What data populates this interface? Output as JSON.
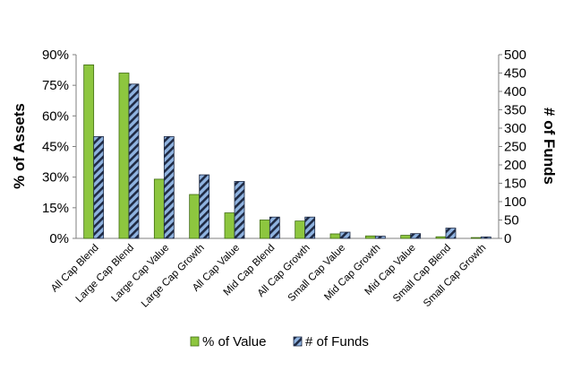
{
  "chart_data": {
    "type": "bar",
    "title": "",
    "categories": [
      "All Cap Blend",
      "Large Cap Blend",
      "Large Cap Value",
      "Large Cap Growth",
      "All Cap Value",
      "Mid Cap Blend",
      "All Cap Growth",
      "Small Cap Value",
      "Mid Cap Growth",
      "Mid Cap Value",
      "Small Cap Blend",
      "Small Cap Growth"
    ],
    "series": [
      {
        "name": "% of Value",
        "axis": "left",
        "values": [
          85,
          81,
          29,
          21.5,
          12.5,
          9,
          8.5,
          2.2,
          1.2,
          1.5,
          0.8,
          0.4
        ]
      },
      {
        "name": "# of Funds",
        "axis": "right",
        "values": [
          277,
          420,
          277,
          173,
          155,
          58,
          58,
          17,
          6,
          13,
          28,
          4
        ]
      }
    ],
    "ylabel": "% of Assets",
    "y2label": "# of Funds",
    "ylim": [
      0,
      90
    ],
    "y2lim": [
      0,
      500
    ],
    "yticks": [
      "0%",
      "15%",
      "30%",
      "45%",
      "60%",
      "75%",
      "90%"
    ],
    "y2ticks": [
      "0",
      "50",
      "100",
      "150",
      "200",
      "250",
      "300",
      "350",
      "400",
      "450",
      "500"
    ],
    "legend_position": "bottom",
    "grid": false,
    "colors": {
      "value": "#8dc63f",
      "value_border": "#3f6b12",
      "funds_fill": "#8fb3e0",
      "funds_stripe": "#1f2a44"
    }
  }
}
